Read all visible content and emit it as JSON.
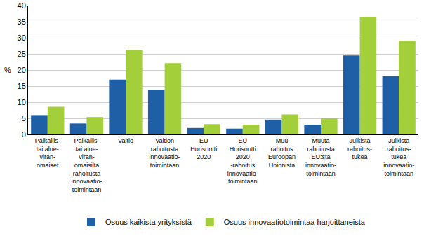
{
  "chart_data": {
    "type": "bar",
    "y_label": "%",
    "categories": [
      "Paikallis-\ntai alue-\nviran-\nomaiset",
      "Paikallis-\ntai alue-\nviran-\nomaisilta\nrahoitusta\ninnovaatio-\ntoimintaan",
      "Valtio",
      "Valtion\nrahoitusta\ninnovaatio-\ntoimintaan",
      "EU\nHorisontti\n2020",
      "EU\nHorisontti\n2020\n-rahoitus\ninnovaatio-\ntoimintaan",
      "Muu\nrahoitus\nEuroopan\nUnionista",
      "Muuta\nrahoitusta\nEU:sta\ninnovaatio-\ntoimintaan",
      "Julkista\nrahoitus-\ntukea",
      "Julkista\nrahoitus-\ntukea\ninnovaatio-\ntoimintaan"
    ],
    "series": [
      {
        "name": "Osuus kaikista yrityksistä",
        "color": "#1f5fa6",
        "values": [
          6.0,
          3.4,
          17.0,
          13.9,
          2.0,
          1.8,
          4.6,
          3.0,
          24.5,
          18.1
        ]
      },
      {
        "name": "Osuus innovaatiotoimintaa harjoittaneista",
        "color": "#a3cf3a",
        "values": [
          8.6,
          5.4,
          26.3,
          22.1,
          3.2,
          3.0,
          6.2,
          5.0,
          36.5,
          29.1
        ]
      }
    ],
    "ylim": [
      0,
      40
    ],
    "yticks": [
      0,
      5,
      10,
      15,
      20,
      25,
      30,
      35,
      40
    ],
    "grid": true,
    "legend": "bottom"
  }
}
